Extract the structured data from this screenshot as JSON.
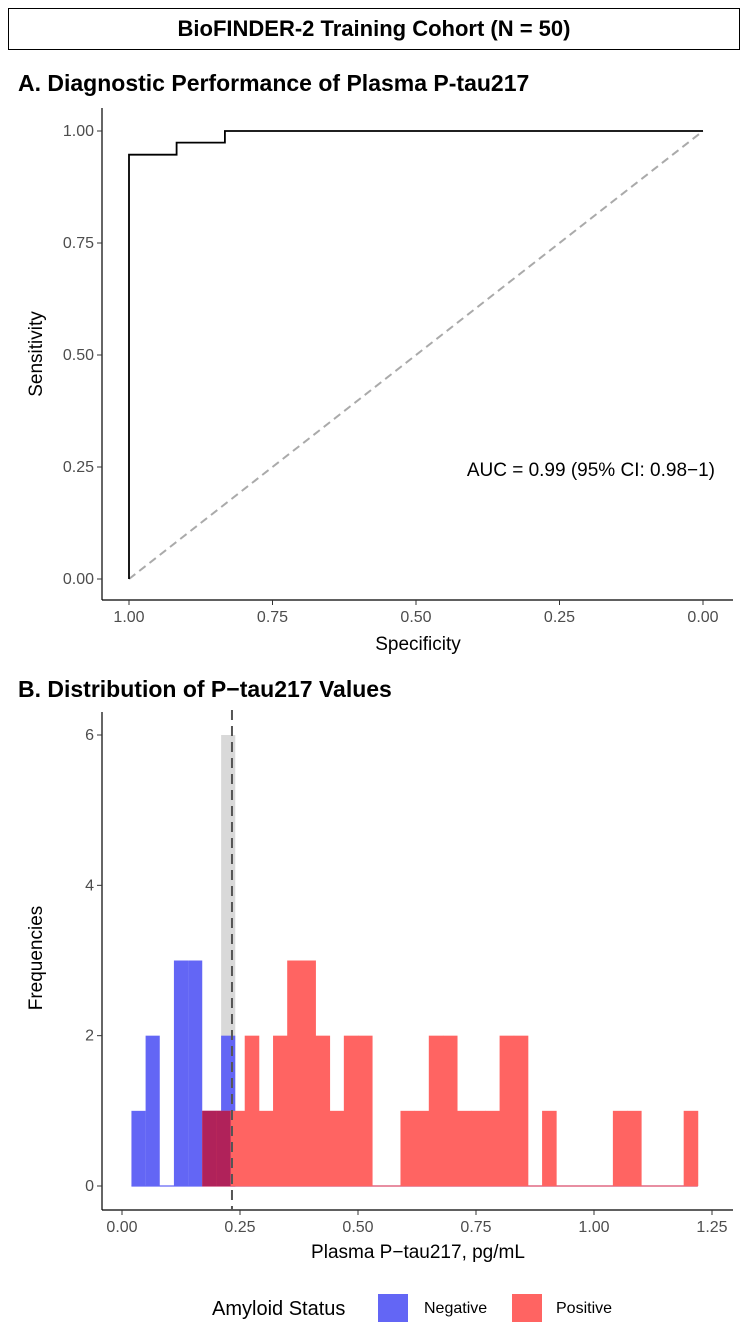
{
  "header": {
    "title": "BioFINDER-2 Training Cohort (N = 50)"
  },
  "colors": {
    "negative": "#6366f5",
    "positive": "#ff6462",
    "overlap": "#b0225a",
    "threshold_band": "#d9d9d9",
    "diagonal": "#aaaaaa"
  },
  "chart_data": [
    {
      "panel_title": "A. Diagnostic Performance of Plasma P-tau217",
      "type": "line",
      "xlabel": "Specificity",
      "ylabel": "Sensitivity",
      "xlim": [
        1.0,
        0.0
      ],
      "ylim": [
        0.0,
        1.0
      ],
      "x_reversed": true,
      "x_ticks": [
        "1.00",
        "0.75",
        "0.50",
        "0.25",
        "0.00"
      ],
      "y_ticks": [
        "0.00",
        "0.25",
        "0.50",
        "0.75",
        "1.00"
      ],
      "grid": false,
      "series": [
        {
          "kind": "roc",
          "points": [
            {
              "specificity": 1.0,
              "sensitivity": 0.0
            },
            {
              "specificity": 1.0,
              "sensitivity": 0.947
            },
            {
              "specificity": 0.917,
              "sensitivity": 0.947
            },
            {
              "specificity": 0.917,
              "sensitivity": 0.974
            },
            {
              "specificity": 0.833,
              "sensitivity": 0.974
            },
            {
              "specificity": 0.833,
              "sensitivity": 1.0
            },
            {
              "specificity": 0.0,
              "sensitivity": 1.0
            }
          ]
        },
        {
          "kind": "reference-diagonal",
          "points": [
            {
              "specificity": 1.0,
              "sensitivity": 0.0
            },
            {
              "specificity": 0.0,
              "sensitivity": 1.0
            }
          ]
        }
      ],
      "annotation": "AUC = 0.99 (95% CI: 0.98−1)"
    },
    {
      "panel_title": "B. Distribution of P−tau217 Values",
      "type": "bar",
      "xlabel": "Plasma P−tau217, pg/mL",
      "ylabel": "Frequencies",
      "xlim": [
        -0.04,
        1.26
      ],
      "ylim": [
        0,
        6.2
      ],
      "x_ticks": [
        "0.00",
        "0.25",
        "0.50",
        "0.75",
        "1.00",
        "1.25"
      ],
      "y_ticks": [
        "0",
        "2",
        "4",
        "6"
      ],
      "grid": false,
      "bin_width": 0.03,
      "threshold": 0.233,
      "threshold_band_bin": {
        "x0": 0.21,
        "x1": 0.24,
        "count": 6
      },
      "series": [
        {
          "name": "Negative",
          "bins": [
            {
              "x0": 0.02,
              "count": 1
            },
            {
              "x0": 0.05,
              "count": 2
            },
            {
              "x0": 0.11,
              "count": 3
            },
            {
              "x0": 0.14,
              "count": 3
            },
            {
              "x0": 0.17,
              "count": 1
            },
            {
              "x0": 0.2,
              "count": 1
            },
            {
              "x0": 0.21,
              "count": 2
            }
          ]
        },
        {
          "name": "Positive",
          "bins": [
            {
              "x0": 0.17,
              "count": 1
            },
            {
              "x0": 0.2,
              "count": 1
            },
            {
              "x0": 0.23,
              "count": 1
            },
            {
              "x0": 0.26,
              "count": 2
            },
            {
              "x0": 0.29,
              "count": 1
            },
            {
              "x0": 0.32,
              "count": 2
            },
            {
              "x0": 0.35,
              "count": 3
            },
            {
              "x0": 0.38,
              "count": 3
            },
            {
              "x0": 0.41,
              "count": 2
            },
            {
              "x0": 0.44,
              "count": 1
            },
            {
              "x0": 0.47,
              "count": 2
            },
            {
              "x0": 0.5,
              "count": 2
            },
            {
              "x0": 0.59,
              "count": 1
            },
            {
              "x0": 0.62,
              "count": 1
            },
            {
              "x0": 0.65,
              "count": 2
            },
            {
              "x0": 0.68,
              "count": 2
            },
            {
              "x0": 0.71,
              "count": 1
            },
            {
              "x0": 0.74,
              "count": 1
            },
            {
              "x0": 0.77,
              "count": 1
            },
            {
              "x0": 0.8,
              "count": 2
            },
            {
              "x0": 0.83,
              "count": 2
            },
            {
              "x0": 0.89,
              "count": 1
            },
            {
              "x0": 1.04,
              "count": 1
            },
            {
              "x0": 1.07,
              "count": 1
            },
            {
              "x0": 1.19,
              "count": 1
            }
          ]
        }
      ],
      "legend": {
        "title": "Amyloid Status",
        "placement": "bottom",
        "items": [
          "Negative",
          "Positive"
        ]
      }
    }
  ]
}
